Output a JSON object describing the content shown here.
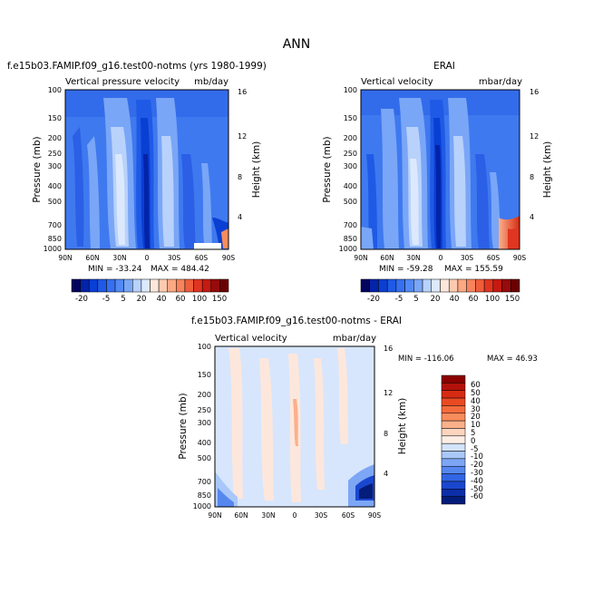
{
  "figure": {
    "title": "ANN"
  },
  "chart_data": [
    {
      "type": "heatmap",
      "title": "f.e15b03.FAMIP.f09_g16.test00-notms (yrs 1980-1999)",
      "subtitle_left": "Vertical pressure velocity",
      "subtitle_right": "mb/day",
      "ylabel": "Pressure (mb)",
      "right_label": "Height (km)",
      "x_ticks": [
        "90N",
        "60N",
        "30N",
        "0",
        "30S",
        "60S",
        "90S"
      ],
      "y_ticks": [
        "100",
        "150",
        "200",
        "250",
        "300",
        "400",
        "500",
        "700",
        "850",
        "1000"
      ],
      "height_ticks": [
        "16",
        "12",
        "8",
        "4"
      ],
      "min_label": "MIN = -33.24",
      "max_label": "MAX = 484.42",
      "min": -33.24,
      "max": 484.42,
      "levels": [
        "-20",
        "-5",
        "5",
        "20",
        "40",
        "60",
        "100",
        "150"
      ],
      "colorbar_colors": [
        "#03045e",
        "#0323a8",
        "#0a3fd3",
        "#1f5ae6",
        "#3670f0",
        "#5289f4",
        "#7aa6f7",
        "#b9d2fb",
        "#dce9fd",
        "#fde7dc",
        "#fdcab0",
        "#fba883",
        "#f7845c",
        "#ef5e3b",
        "#e03520",
        "#c41a12",
        "#960b0b",
        "#6b0000"
      ]
    },
    {
      "type": "heatmap",
      "title": "ERAI",
      "subtitle_left": "Vertical velocity",
      "subtitle_right": "mbar/day",
      "ylabel": "Pressure (mb)",
      "right_label": "Height (km)",
      "x_ticks": [
        "90N",
        "60N",
        "30N",
        "0",
        "30S",
        "60S",
        "90S"
      ],
      "y_ticks": [
        "100",
        "150",
        "200",
        "250",
        "300",
        "400",
        "500",
        "700",
        "850",
        "1000"
      ],
      "height_ticks": [
        "16",
        "12",
        "8",
        "4"
      ],
      "min_label": "MIN = -59.28",
      "max_label": "MAX = 155.59",
      "min": -59.28,
      "max": 155.59,
      "levels": [
        "-20",
        "-5",
        "5",
        "20",
        "40",
        "60",
        "100",
        "150"
      ],
      "colorbar_colors": [
        "#03045e",
        "#0323a8",
        "#0a3fd3",
        "#1f5ae6",
        "#3670f0",
        "#5289f4",
        "#7aa6f7",
        "#b9d2fb",
        "#dce9fd",
        "#fde7dc",
        "#fdcab0",
        "#fba883",
        "#f7845c",
        "#ef5e3b",
        "#e03520",
        "#c41a12",
        "#960b0b",
        "#6b0000"
      ]
    },
    {
      "type": "heatmap",
      "title": "f.e15b03.FAMIP.f09_g16.test00-notms - ERAI",
      "subtitle_left": "Vertical velocity",
      "subtitle_right": "mbar/day",
      "ylabel": "Pressure (mb)",
      "right_label": "Height (km)",
      "x_ticks": [
        "90N",
        "60N",
        "30N",
        "0",
        "30S",
        "60S",
        "90S"
      ],
      "y_ticks": [
        "100",
        "150",
        "200",
        "250",
        "300",
        "400",
        "500",
        "700",
        "850",
        "1000"
      ],
      "height_ticks": [
        "16",
        "12",
        "8",
        "4"
      ],
      "min_label": "MIN = -116.06",
      "max_label": "MAX =  46.93",
      "min": -116.06,
      "max": 46.93,
      "levels": [
        "60",
        "50",
        "40",
        "30",
        "20",
        "10",
        "5",
        "0",
        "-5",
        "-10",
        "-20",
        "-30",
        "-40",
        "-50",
        "-60"
      ],
      "colorbar_colors": [
        "#8b0000",
        "#b3120a",
        "#d62b12",
        "#ea4a22",
        "#f46b3c",
        "#f98c5c",
        "#fbb08b",
        "#fdd5bf",
        "#fdeee4",
        "#d3e3fc",
        "#a9c7f9",
        "#7da6f5",
        "#5687ef",
        "#3265e4",
        "#1a47cf",
        "#0c2ea8",
        "#041c7a"
      ]
    }
  ],
  "colors": {
    "background_field": "#3f79ef",
    "strong_blue": "#0a2fc0",
    "light_blue": "#b9d2fb",
    "diff_field": "#d7e6fc",
    "diff_positive": "#fde7dc"
  }
}
